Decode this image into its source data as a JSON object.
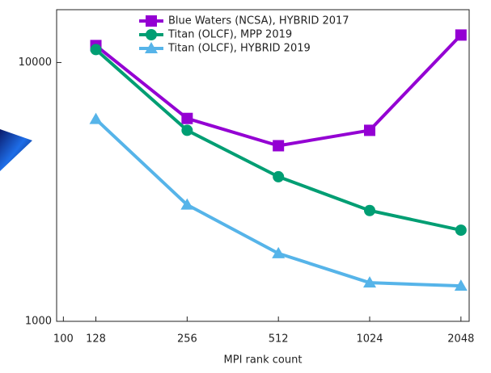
{
  "chart_data": {
    "type": "line",
    "x_label": "MPI rank count",
    "x": [
      128,
      256,
      512,
      1024,
      2048
    ],
    "xscale": "log",
    "yscale": "log",
    "xlim": [
      95,
      2180
    ],
    "ylim": [
      1000,
      16000
    ],
    "xticks": [
      100,
      128,
      256,
      512,
      1024,
      2048
    ],
    "yticks": [
      1000,
      10000
    ],
    "legend": "top",
    "series": [
      {
        "name": "Blue Waters (NCSA), HYBRID 2017",
        "color": "#9400d3",
        "marker": "square",
        "values": [
          11630,
          6080,
          4770,
          5470,
          12770
        ]
      },
      {
        "name": "Titan (OLCF), MPP 2019",
        "color": "#009e73",
        "marker": "circle",
        "values": [
          11220,
          5470,
          3620,
          2680,
          2250
        ]
      },
      {
        "name": "Titan (OLCF), HYBRID 2019",
        "color": "#56b4e9",
        "marker": "triangle",
        "values": [
          6040,
          2820,
          1830,
          1410,
          1370
        ]
      }
    ]
  }
}
